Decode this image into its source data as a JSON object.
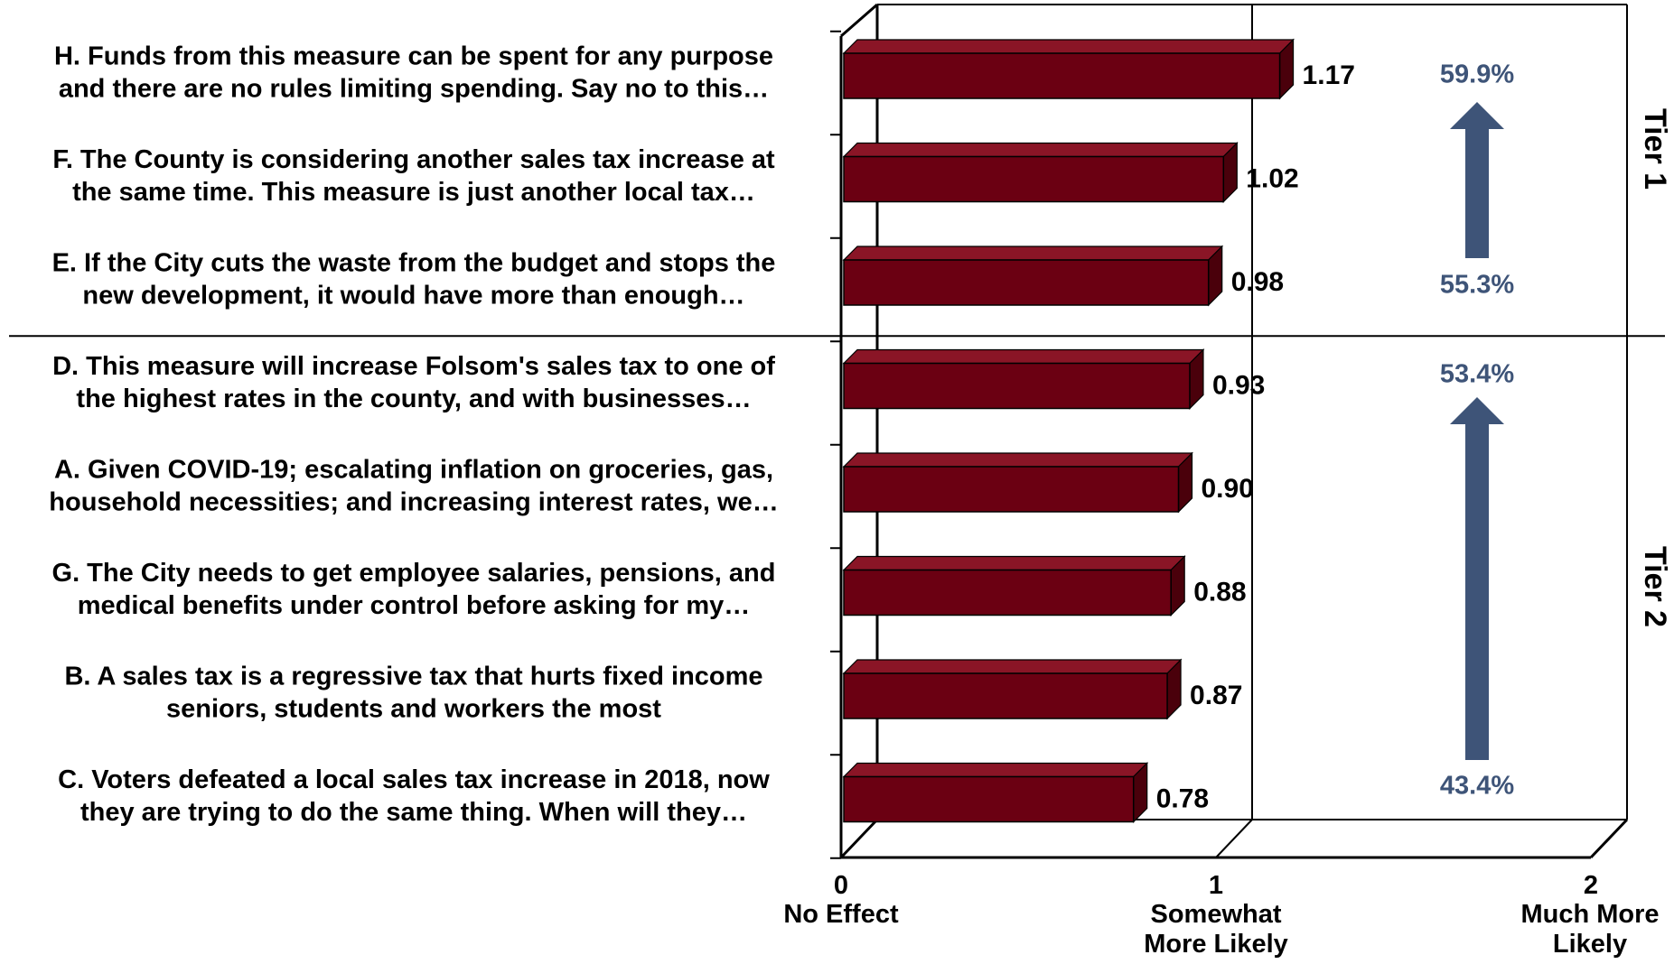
{
  "chart_data": {
    "type": "bar",
    "orientation": "horizontal",
    "three_d": true,
    "bar_color": "#6b0012",
    "bar_top_color": "#8a1526",
    "bar_side_color": "#4a000b",
    "accent_color": "#3e5478",
    "categories": [
      [
        "H. Funds from this measure can be spent for any purpose",
        "and there are no rules limiting spending. Say no to this…"
      ],
      [
        "F. The County is considering another sales tax increase at",
        "the same time.  This measure is just another local tax…"
      ],
      [
        "E. If the City cuts the waste from the budget and stops the",
        "new development, it would have more than enough…"
      ],
      [
        "D. This measure will increase Folsom's sales tax to one of",
        "the highest rates in the county, and with businesses…"
      ],
      [
        "A. Given COVID-19; escalating inflation on groceries, gas,",
        "household necessities; and increasing interest rates, we…"
      ],
      [
        "G. The City needs to get employee salaries, pensions, and",
        "medical benefits under control before asking for my…"
      ],
      [
        "B. A sales tax is a regressive tax that hurts fixed income",
        "seniors, students and workers the most"
      ],
      [
        "C. Voters defeated a local sales tax increase in 2018, now",
        "they are trying to do the same thing.  When will they…"
      ]
    ],
    "values": [
      1.17,
      1.02,
      0.98,
      0.93,
      0.9,
      0.88,
      0.87,
      0.78
    ],
    "value_labels": [
      "1.17",
      "1.02",
      "0.98",
      "0.93",
      "0.90",
      "0.88",
      "0.87",
      "0.78"
    ],
    "xlim": [
      0,
      2
    ],
    "x_ticks": [
      {
        "value": 0,
        "number": "0",
        "lines": [
          "No Effect"
        ]
      },
      {
        "value": 1,
        "number": "1",
        "lines": [
          "Somewhat",
          "More  Likely"
        ]
      },
      {
        "value": 2,
        "number": "2",
        "lines": [
          "Much More",
          "Likely"
        ]
      }
    ],
    "reference_line": 1,
    "tiers": [
      {
        "label": "Tier 1",
        "rows": [
          0,
          1,
          2
        ],
        "pct_top": "59.9%",
        "pct_bottom": "55.3%"
      },
      {
        "label": "Tier 2",
        "rows": [
          3,
          4,
          5,
          6,
          7
        ],
        "pct_top": "53.4%",
        "pct_bottom": "43.4%"
      }
    ]
  }
}
